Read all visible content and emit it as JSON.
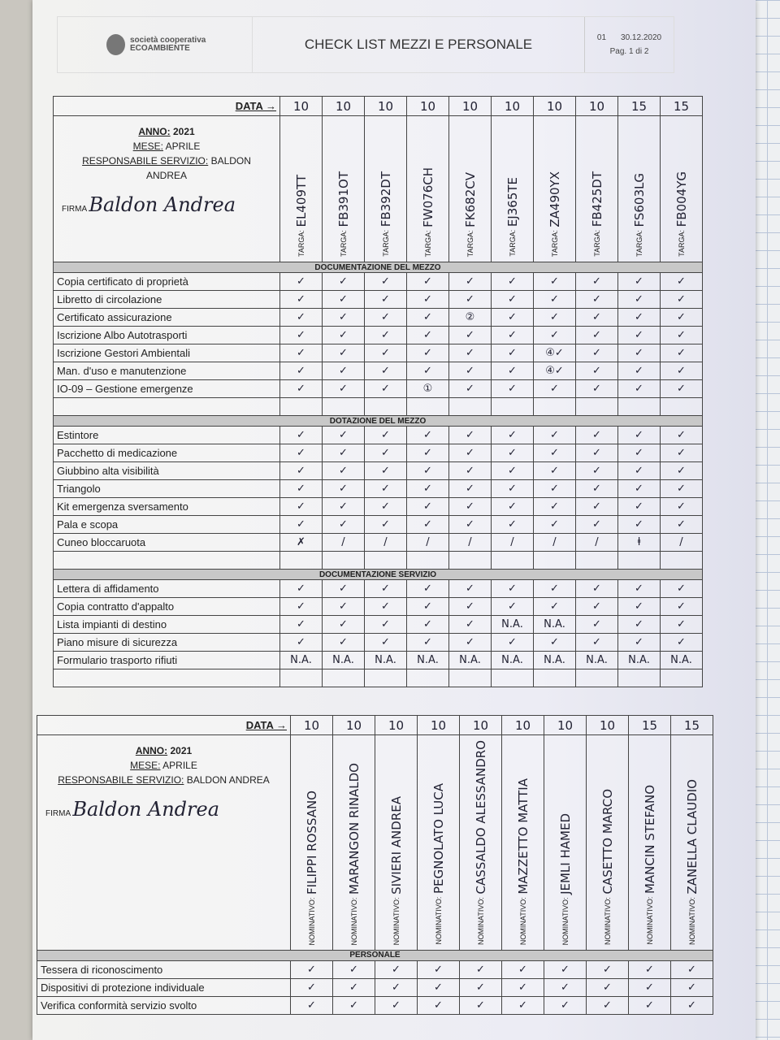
{
  "header": {
    "company": "società cooperativa ECOAMBIENTE",
    "title": "CHECK LIST MEZZI E PERSONALE",
    "rev": "01",
    "date": "30.12.2020",
    "page": "Pag. 1 di 2"
  },
  "mezzi": {
    "data_label": "DATA →",
    "dates": [
      "10",
      "10",
      "10",
      "10",
      "10",
      "10",
      "10",
      "10",
      "15",
      "15"
    ],
    "anno_label": "ANNO:",
    "anno": "2021",
    "mese_label": "MESE:",
    "mese": "APRILE",
    "resp_label": "RESPONSABILE SERVIZIO:",
    "resp": "BALDON ANDREA",
    "firma_label": "FIRMA",
    "firma": "Baldon Andrea",
    "targa_label": "TARGA:",
    "targhe": [
      "EL409TT",
      "FB391OT",
      "FB392DT",
      "FW076CH",
      "FK682CV",
      "EJ365TE",
      "ZA490YX",
      "FB425DT",
      "FS603LG",
      "FB004YG"
    ],
    "sections": [
      {
        "title": "DOCUMENTAZIONE DEL MEZZO",
        "rows": [
          {
            "label": "Copia certificato di proprietà",
            "cells": [
              "✓",
              "✓",
              "✓",
              "✓",
              "✓",
              "✓",
              "✓",
              "✓",
              "✓",
              "✓"
            ]
          },
          {
            "label": "Libretto di circolazione",
            "cells": [
              "✓",
              "✓",
              "✓",
              "✓",
              "✓",
              "✓",
              "✓",
              "✓",
              "✓",
              "✓"
            ]
          },
          {
            "label": "Certificato assicurazione",
            "cells": [
              "✓",
              "✓",
              "✓",
              "✓",
              "②",
              "✓",
              "✓",
              "✓",
              "✓",
              "✓"
            ]
          },
          {
            "label": "Iscrizione Albo Autotrasporti",
            "cells": [
              "✓",
              "✓",
              "✓",
              "✓",
              "✓",
              "✓",
              "✓",
              "✓",
              "✓",
              "✓"
            ]
          },
          {
            "label": "Iscrizione Gestori Ambientali",
            "cells": [
              "✓",
              "✓",
              "✓",
              "✓",
              "✓",
              "✓",
              "④✓",
              "✓",
              "✓",
              "✓"
            ]
          },
          {
            "label": "Man. d'uso e manutenzione",
            "cells": [
              "✓",
              "✓",
              "✓",
              "✓",
              "✓",
              "✓",
              "④✓",
              "✓",
              "✓",
              "✓"
            ]
          },
          {
            "label": "IO-09 – Gestione emergenze",
            "cells": [
              "✓",
              "✓",
              "✓",
              "①",
              "✓",
              "✓",
              "✓",
              "✓",
              "✓",
              "✓"
            ]
          },
          {
            "label": "",
            "cells": [
              "",
              "",
              "",
              "",
              "",
              "",
              "",
              "",
              "",
              ""
            ]
          }
        ]
      },
      {
        "title": "DOTAZIONE DEL MEZZO",
        "rows": [
          {
            "label": "Estintore",
            "cells": [
              "✓",
              "✓",
              "✓",
              "✓",
              "✓",
              "✓",
              "✓",
              "✓",
              "✓",
              "✓"
            ]
          },
          {
            "label": "Pacchetto di medicazione",
            "cells": [
              "✓",
              "✓",
              "✓",
              "✓",
              "✓",
              "✓",
              "✓",
              "✓",
              "✓",
              "✓"
            ]
          },
          {
            "label": "Giubbino alta visibilità",
            "cells": [
              "✓",
              "✓",
              "✓",
              "✓",
              "✓",
              "✓",
              "✓",
              "✓",
              "✓",
              "✓"
            ]
          },
          {
            "label": "Triangolo",
            "cells": [
              "✓",
              "✓",
              "✓",
              "✓",
              "✓",
              "✓",
              "✓",
              "✓",
              "✓",
              "✓"
            ]
          },
          {
            "label": "Kit emergenza sversamento",
            "cells": [
              "✓",
              "✓",
              "✓",
              "✓",
              "✓",
              "✓",
              "✓",
              "✓",
              "✓",
              "✓"
            ]
          },
          {
            "label": "Pala e scopa",
            "cells": [
              "✓",
              "✓",
              "✓",
              "✓",
              "✓",
              "✓",
              "✓",
              "✓",
              "✓",
              "✓"
            ]
          },
          {
            "label": "Cuneo bloccaruota",
            "cells": [
              "✗",
              "/",
              "/",
              "/",
              "/",
              "/",
              "/",
              "/",
              "ⱡ",
              "/"
            ]
          },
          {
            "label": "",
            "cells": [
              "",
              "",
              "",
              "",
              "",
              "",
              "",
              "",
              "",
              ""
            ]
          }
        ]
      },
      {
        "title": "DOCUMENTAZIONE SERVIZIO",
        "rows": [
          {
            "label": "Lettera di affidamento",
            "cells": [
              "✓",
              "✓",
              "✓",
              "✓",
              "✓",
              "✓",
              "✓",
              "✓",
              "✓",
              "✓"
            ]
          },
          {
            "label": "Copia contratto d'appalto",
            "cells": [
              "✓",
              "✓",
              "✓",
              "✓",
              "✓",
              "✓",
              "✓",
              "✓",
              "✓",
              "✓"
            ]
          },
          {
            "label": "Lista impianti di destino",
            "cells": [
              "✓",
              "✓",
              "✓",
              "✓",
              "✓",
              "N.A.",
              "N.A.",
              "✓",
              "✓",
              "✓"
            ]
          },
          {
            "label": "Piano misure di sicurezza",
            "cells": [
              "✓",
              "✓",
              "✓",
              "✓",
              "✓",
              "✓",
              "✓",
              "✓",
              "✓",
              "✓"
            ]
          },
          {
            "label": "Formulario trasporto rifiuti",
            "cells": [
              "N.A.",
              "N.A.",
              "N.A.",
              "N.A.",
              "N.A.",
              "N.A.",
              "N.A.",
              "N.A.",
              "N.A.",
              "N.A."
            ]
          },
          {
            "label": "",
            "cells": [
              "",
              "",
              "",
              "",
              "",
              "",
              "",
              "",
              "",
              ""
            ]
          }
        ]
      }
    ]
  },
  "personale": {
    "data_label": "DATA →",
    "dates": [
      "10",
      "10",
      "10",
      "10",
      "10",
      "10",
      "10",
      "10",
      "15",
      "15"
    ],
    "anno_label": "ANNO:",
    "anno": "2021",
    "mese_label": "MESE:",
    "mese": "APRILE",
    "resp_label": "RESPONSABILE SERVIZIO:",
    "resp": "BALDON ANDREA",
    "firma_label": "FIRMA",
    "firma": "Baldon Andrea",
    "nominativo_label": "NOMINATIVO:",
    "nomi": [
      "FILIPPI ROSSANO",
      "MARANGON RINALDO",
      "SIVIERI ANDREA",
      "PEGNOLATO LUCA",
      "CASSALDO ALESSANDRO",
      "MAZZETTO MATTIA",
      "JEMLI HAMED",
      "CASETTO MARCO",
      "MANCIN STEFANO",
      "ZANELLA CLAUDIO"
    ],
    "sections": [
      {
        "title": "PERSONALE",
        "rows": [
          {
            "label": "Tessera di riconoscimento",
            "cells": [
              "✓",
              "✓",
              "✓",
              "✓",
              "✓",
              "✓",
              "✓",
              "✓",
              "✓",
              "✓"
            ]
          },
          {
            "label": "Dispositivi di protezione individuale",
            "cells": [
              "✓",
              "✓",
              "✓",
              "✓",
              "✓",
              "✓",
              "✓",
              "✓",
              "✓",
              "✓"
            ]
          },
          {
            "label": "Verifica conformità servizio svolto",
            "cells": [
              "✓",
              "✓",
              "✓",
              "✓",
              "✓",
              "✓",
              "✓",
              "✓",
              "✓",
              "✓"
            ]
          }
        ]
      }
    ]
  }
}
